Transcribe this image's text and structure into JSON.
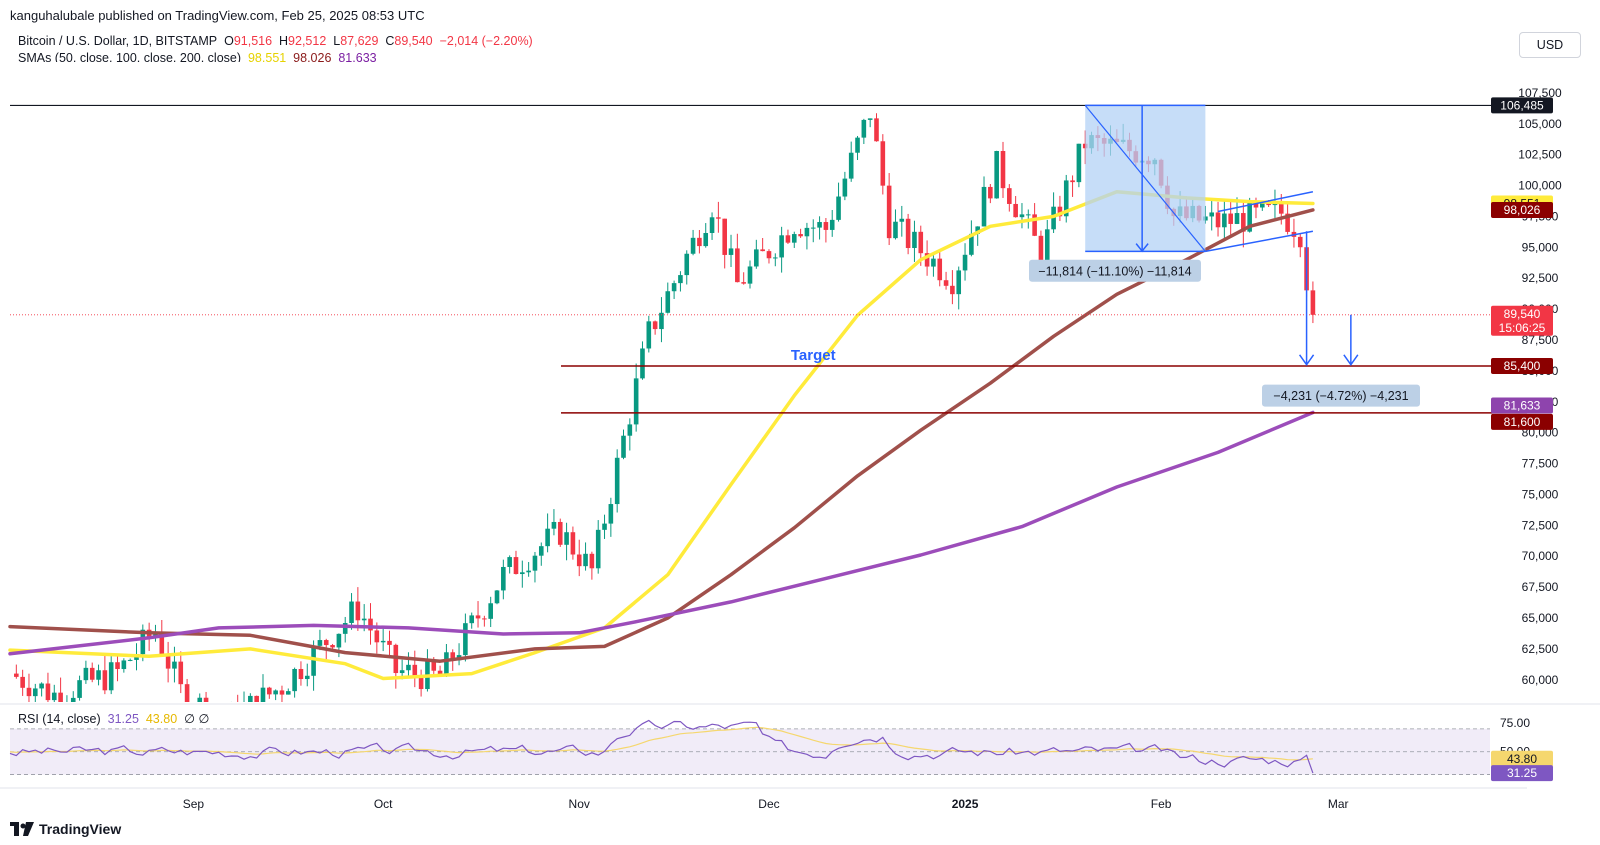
{
  "header": {
    "published": "kanguhalubale published on TradingView.com, Feb 25, 2025 08:53 UTC",
    "symbol": "Bitcoin / U.S. Dollar, 1D, BITSTAMP",
    "ohlc": {
      "o_label": "O",
      "o": "91,516",
      "h_label": "H",
      "h": "92,512",
      "l_label": "L",
      "l": "87,629",
      "c_label": "C",
      "c": "89,540",
      "change": "−2,014 (−2.20%)"
    },
    "sma_label": "SMAs (50, close, 100, close, 200, close)",
    "sma50": "98,551",
    "sma100": "98,026",
    "sma200": "81,633",
    "currency": "USD"
  },
  "rsi": {
    "label": "RSI (14, close)",
    "value": "31.25",
    "ma": "43.80",
    "icons": "∅ ∅",
    "ticks": [
      "75.00",
      "50.00"
    ]
  },
  "footer": {
    "brand": "TradingView"
  },
  "colors": {
    "up": "#089981",
    "down": "#f23645",
    "sma50": "#ffeb3b",
    "sma100": "#a0504b",
    "sma200": "#9c4dba",
    "rsi": "#7e57c2",
    "rsi_ma": "#f5d76e",
    "target": "#8b0000",
    "measure": "#2962ff"
  },
  "chart_data": {
    "type": "line",
    "title": "Bitcoin / U.S. Dollar, 1D, BITSTAMP",
    "ylim": [
      58200,
      110000
    ],
    "y_ticks": [
      60000,
      62500,
      65000,
      67500,
      70000,
      72500,
      75000,
      77500,
      80000,
      82500,
      85000,
      87500,
      90000,
      92500,
      95000,
      97500,
      100000,
      102500,
      105000,
      107500
    ],
    "x_ticks": [
      {
        "label": "Sep",
        "date": "2024-09-01"
      },
      {
        "label": "Oct",
        "date": "2024-10-01"
      },
      {
        "label": "Nov",
        "date": "2024-11-01"
      },
      {
        "label": "Dec",
        "date": "2024-12-01"
      },
      {
        "label": "2025",
        "date": "2025-01-01"
      },
      {
        "label": "Feb",
        "date": "2025-02-01"
      },
      {
        "label": "Mar",
        "date": "2025-03-01"
      }
    ],
    "xlim": [
      "2024-08-03",
      "2025-03-25"
    ],
    "series": [
      {
        "name": "SMA 50",
        "values": [
          [
            "2024-08-03",
            62400
          ],
          [
            "2024-08-25",
            61900
          ],
          [
            "2024-09-10",
            62500
          ],
          [
            "2024-09-25",
            61300
          ],
          [
            "2024-10-01",
            60100
          ],
          [
            "2024-10-15",
            60500
          ],
          [
            "2024-10-25",
            62200
          ],
          [
            "2024-11-05",
            64200
          ],
          [
            "2024-11-15",
            68500
          ],
          [
            "2024-11-25",
            75800
          ],
          [
            "2024-12-05",
            83000
          ],
          [
            "2024-12-15",
            89500
          ],
          [
            "2024-12-25",
            94000
          ],
          [
            "2025-01-05",
            96700
          ],
          [
            "2025-01-15",
            97500
          ],
          [
            "2025-01-25",
            99500
          ],
          [
            "2025-02-05",
            99000
          ],
          [
            "2025-02-15",
            98700
          ],
          [
            "2025-02-25",
            98551
          ]
        ]
      },
      {
        "name": "SMA 100",
        "values": [
          [
            "2024-08-03",
            64300
          ],
          [
            "2024-08-25",
            63800
          ],
          [
            "2024-09-10",
            63600
          ],
          [
            "2024-09-25",
            62200
          ],
          [
            "2024-10-10",
            61500
          ],
          [
            "2024-10-25",
            62500
          ],
          [
            "2024-11-05",
            62700
          ],
          [
            "2024-11-15",
            65000
          ],
          [
            "2024-11-25",
            68500
          ],
          [
            "2024-12-05",
            72300
          ],
          [
            "2024-12-15",
            76500
          ],
          [
            "2024-12-25",
            80200
          ],
          [
            "2025-01-05",
            84000
          ],
          [
            "2025-01-15",
            87800
          ],
          [
            "2025-01-25",
            91200
          ],
          [
            "2025-02-05",
            94000
          ],
          [
            "2025-02-15",
            96700
          ],
          [
            "2025-02-25",
            98026
          ]
        ]
      },
      {
        "name": "SMA 200",
        "values": [
          [
            "2024-08-03",
            62100
          ],
          [
            "2024-08-25",
            63400
          ],
          [
            "2024-09-05",
            64200
          ],
          [
            "2024-09-20",
            64400
          ],
          [
            "2024-10-05",
            64200
          ],
          [
            "2024-10-20",
            63700
          ],
          [
            "2024-11-01",
            63800
          ],
          [
            "2024-11-10",
            64700
          ],
          [
            "2024-11-25",
            66300
          ],
          [
            "2024-12-10",
            68200
          ],
          [
            "2024-12-25",
            70100
          ],
          [
            "2025-01-10",
            72400
          ],
          [
            "2025-01-25",
            75600
          ],
          [
            "2025-02-10",
            78400
          ],
          [
            "2025-02-25",
            81633
          ]
        ]
      }
    ],
    "price_labels": [
      {
        "value": 106485,
        "text": "106,485",
        "color": "#131722",
        "fg": "#ffffff"
      },
      {
        "value": 98551,
        "text": "98,551",
        "color": "#ffeb3b",
        "fg": "#131722"
      },
      {
        "value": 98026,
        "text": "98,026",
        "color": "#8b0000",
        "fg": "#ffffff"
      },
      {
        "value": 89540,
        "text": "89,540",
        "sub": "15:06:25",
        "color": "#f23645",
        "fg": "#ffffff"
      },
      {
        "value": 85400,
        "text": "85,400",
        "color": "#8b0000",
        "fg": "#ffffff"
      },
      {
        "value": 81633,
        "text": "81,633",
        "color": "#8e44ad",
        "fg": "#ffffff"
      },
      {
        "value": 81600,
        "text": "81,600",
        "color": "#8b0000",
        "fg": "#ffffff"
      }
    ],
    "levels": [
      {
        "value": 106485,
        "color": "#131722"
      },
      {
        "value": 85400,
        "color": "#8b0000"
      },
      {
        "value": 81600,
        "color": "#8b0000"
      }
    ],
    "annotations": {
      "target": "Target",
      "measure1": "−11,814 (−11.10%) −11,814",
      "measure2": "−4,231 (−4.72%) −4,231"
    },
    "rsi": {
      "ylim": [
        20,
        90
      ],
      "ma_level": 43.8,
      "last": 31.25
    }
  }
}
